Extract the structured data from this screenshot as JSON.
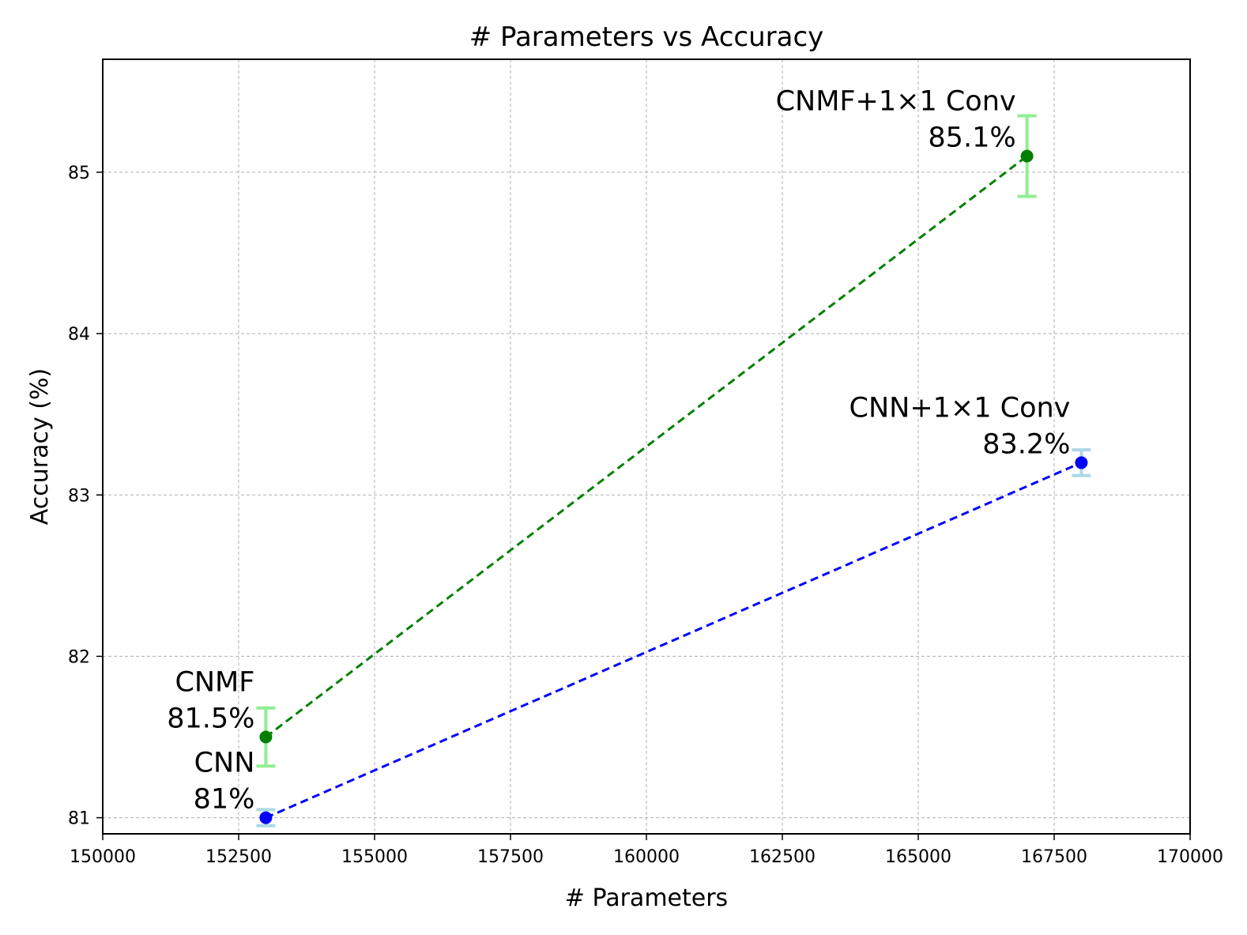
{
  "chart_data": {
    "type": "scatter",
    "title": "# Parameters vs Accuracy",
    "xlabel": "# Parameters",
    "ylabel": "Accuracy (%)",
    "xlim": [
      150000,
      170000
    ],
    "ylim": [
      80.9,
      85.7
    ],
    "x_ticks": [
      150000,
      152500,
      155000,
      157500,
      160000,
      162500,
      165000,
      167500,
      170000
    ],
    "x_tick_labels": [
      "150000",
      "152500",
      "155000",
      "157500",
      "160000",
      "162500",
      "165000",
      "167500",
      "170000"
    ],
    "y_ticks": [
      81,
      82,
      83,
      84,
      85
    ],
    "y_tick_labels": [
      "81",
      "82",
      "83",
      "84",
      "85"
    ],
    "grid": true,
    "series": [
      {
        "color": "#008000",
        "error_color": "#90ee90",
        "line_style": "dashed",
        "points": [
          {
            "x": 153000,
            "y": 81.5,
            "err": 0.18,
            "label_line1": "CNMF",
            "label_line2": "81.5%"
          },
          {
            "x": 167000,
            "y": 85.1,
            "err": 0.25,
            "label_line1": "CNMF+1×1 Conv",
            "label_line2": "85.1%"
          }
        ]
      },
      {
        "color": "#0000ff",
        "error_color": "#add8e6",
        "line_style": "dashed",
        "points": [
          {
            "x": 153000,
            "y": 81.0,
            "err": 0.05,
            "label_line1": "CNN",
            "label_line2": "81%"
          },
          {
            "x": 168000,
            "y": 83.2,
            "err": 0.08,
            "label_line1": "CNN+1×1 Conv",
            "label_line2": "83.2%"
          }
        ]
      }
    ]
  }
}
